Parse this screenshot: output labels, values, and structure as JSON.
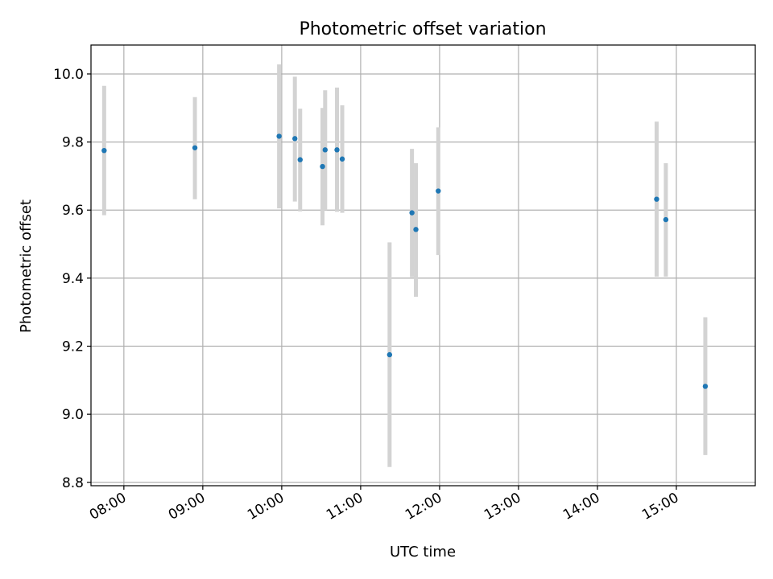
{
  "chart_data": {
    "type": "scatter",
    "title": "Photometric offset variation",
    "xlabel": "UTC time",
    "ylabel": "Photometric offset",
    "x_axis_type": "time",
    "xlim": [
      "07:35",
      "16:00"
    ],
    "ylim": [
      8.79,
      10.085
    ],
    "grid": true,
    "legend": "none",
    "x_ticks": [
      "08:00",
      "09:00",
      "10:00",
      "11:00",
      "12:00",
      "13:00",
      "14:00",
      "15:00"
    ],
    "y_ticks": [
      "8.8",
      "9.0",
      "9.2",
      "9.4",
      "9.6",
      "9.8",
      "10.0"
    ],
    "colors": {
      "point": "#1f77b4",
      "errorbar": "#d3d3d3",
      "grid": "#b0b0b0"
    },
    "series": [
      {
        "points": [
          {
            "t": "07:45",
            "y": 9.775,
            "err_lo": 9.585,
            "err_hi": 9.965
          },
          {
            "t": "08:54",
            "y": 9.783,
            "err_lo": 9.632,
            "err_hi": 9.932
          },
          {
            "t": "09:58",
            "y": 9.817,
            "err_lo": 9.605,
            "err_hi": 10.028
          },
          {
            "t": "10:10",
            "y": 9.81,
            "err_lo": 9.625,
            "err_hi": 9.992
          },
          {
            "t": "10:14",
            "y": 9.748,
            "err_lo": 9.596,
            "err_hi": 9.898
          },
          {
            "t": "10:31",
            "y": 9.728,
            "err_lo": 9.555,
            "err_hi": 9.9
          },
          {
            "t": "10:33",
            "y": 9.777,
            "err_lo": 9.6,
            "err_hi": 9.952
          },
          {
            "t": "10:42",
            "y": 9.777,
            "err_lo": 9.595,
            "err_hi": 9.96
          },
          {
            "t": "10:46",
            "y": 9.75,
            "err_lo": 9.592,
            "err_hi": 9.908
          },
          {
            "t": "11:22",
            "y": 9.175,
            "err_lo": 8.845,
            "err_hi": 9.505
          },
          {
            "t": "11:39",
            "y": 9.592,
            "err_lo": 9.403,
            "err_hi": 9.78
          },
          {
            "t": "11:42",
            "y": 9.543,
            "err_lo": 9.345,
            "err_hi": 9.738
          },
          {
            "t": "11:59",
            "y": 9.656,
            "err_lo": 9.468,
            "err_hi": 9.843
          },
          {
            "t": "14:45",
            "y": 9.632,
            "err_lo": 9.404,
            "err_hi": 9.86
          },
          {
            "t": "14:52",
            "y": 9.572,
            "err_lo": 9.404,
            "err_hi": 9.738
          },
          {
            "t": "15:22",
            "y": 9.082,
            "err_lo": 8.88,
            "err_hi": 9.285
          }
        ]
      }
    ]
  }
}
